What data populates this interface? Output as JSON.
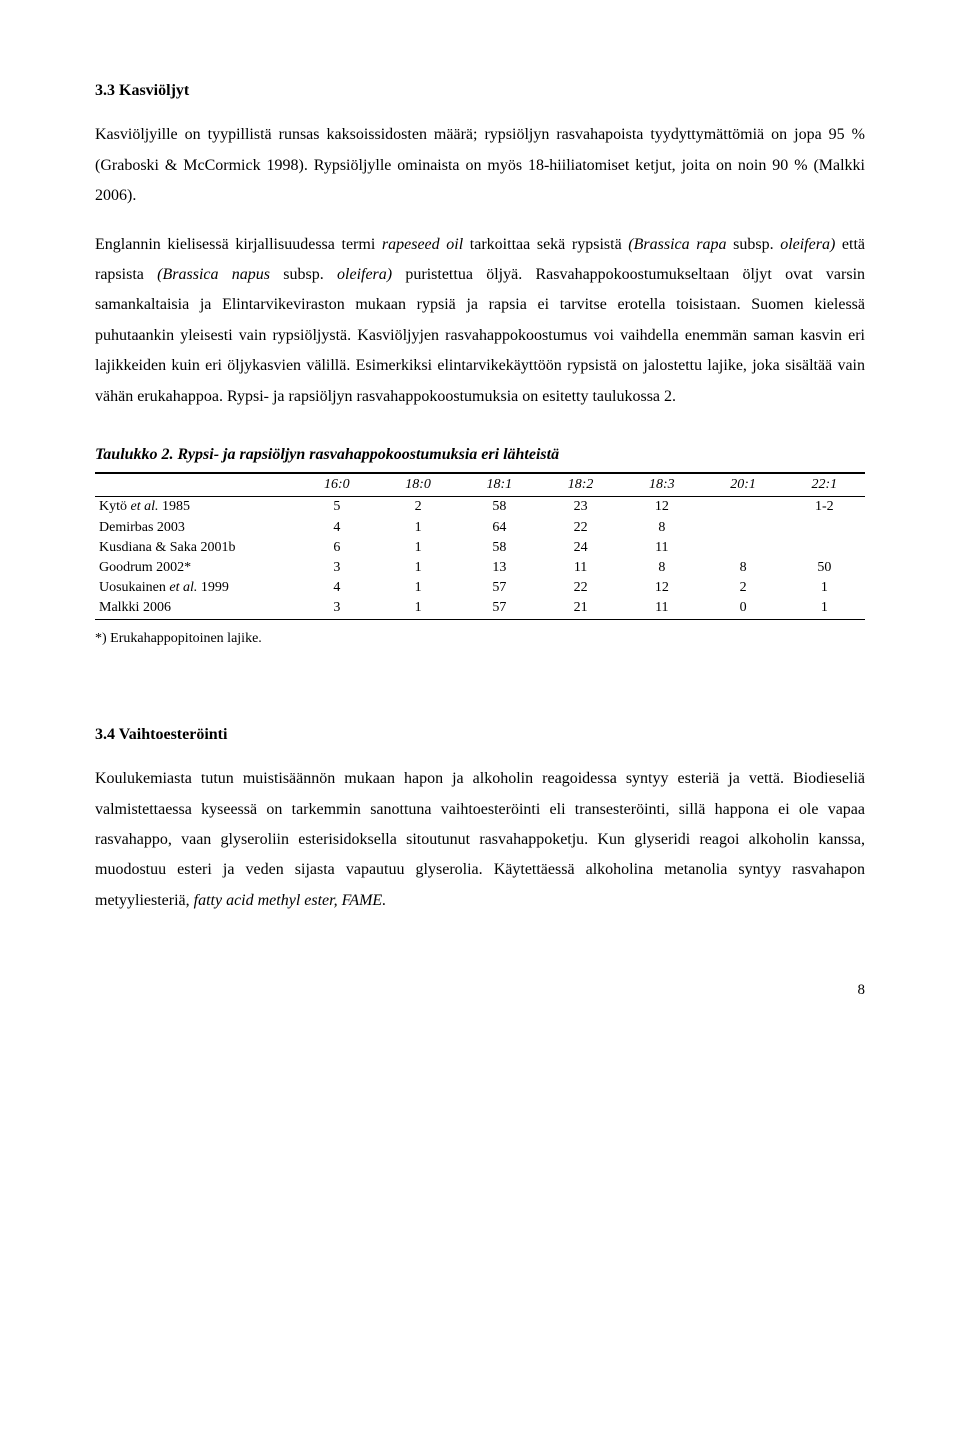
{
  "section1": {
    "heading": "3.3 Kasviöljyt",
    "para1_pre": "Kasviöljyille on tyypillistä runsas kaksoissidosten määrä; rypsiöljyn rasvahapoista tyydyttymättömiä on jopa 95 % (Graboski & McCormick 1998). Rypsiöljylle ominaista on myös 18-hiiliatomiset ketjut, joita on noin 90 % (Malkki 2006).",
    "p2_a": "Englannin kielisessä kirjallisuudessa termi ",
    "p2_i1": "rapeseed oil",
    "p2_b": " tarkoittaa sekä rypsistä ",
    "p2_i2": "(Brassica rapa",
    "p2_c": " subsp. ",
    "p2_i3": "oleifera)",
    "p2_d": " että rapsista ",
    "p2_i4": "(Brassica napus",
    "p2_e": " subsp. ",
    "p2_i5": "oleifera)",
    "p2_f": " puristettua öljyä. Rasvahappokoostumukseltaan öljyt ovat varsin samankaltaisia ja Elintarvikeviraston mukaan rypsiä ja rapsia ei tarvitse erotella toisistaan. Suomen kielessä puhutaankin yleisesti vain rypsiöljystä. Kasviöljyjen rasvahappokoostumus voi vaihdella enemmän saman kasvin eri lajikkeiden kuin eri öljykasvien välillä. Esimerkiksi elintarvikekäyttöön rypsistä on jalostettu lajike, joka sisältää vain vähän erukahappoa. Rypsi- ja rapsiöljyn rasvahappokoostumuksia on esitetty taulukossa 2."
  },
  "table": {
    "caption": "Taulukko 2. Rypsi- ja rapsiöljyn rasvahappokoostumuksia eri lähteistä",
    "columns": [
      "",
      "16:0",
      "18:0",
      "18:1",
      "18:2",
      "18:3",
      "20:1",
      "22:1"
    ],
    "rows": [
      {
        "label_pre": "Kytö ",
        "label_it": "et al.",
        "label_post": " 1985",
        "cells": [
          "5",
          "2",
          "58",
          "23",
          "12",
          "",
          "1-2"
        ]
      },
      {
        "label_pre": "Demirbas 2003",
        "label_it": "",
        "label_post": "",
        "cells": [
          "4",
          "1",
          "64",
          "22",
          "8",
          "",
          ""
        ]
      },
      {
        "label_pre": "Kusdiana & Saka 2001b",
        "label_it": "",
        "label_post": "",
        "cells": [
          "6",
          "1",
          "58",
          "24",
          "11",
          "",
          ""
        ]
      },
      {
        "label_pre": "Goodrum 2002*",
        "label_it": "",
        "label_post": "",
        "cells": [
          "3",
          "1",
          "13",
          "11",
          "8",
          "8",
          "50"
        ]
      },
      {
        "label_pre": "Uosukainen ",
        "label_it": "et al.",
        "label_post": " 1999",
        "cells": [
          "4",
          "1",
          "57",
          "22",
          "12",
          "2",
          "1"
        ]
      },
      {
        "label_pre": "Malkki 2006",
        "label_it": "",
        "label_post": "",
        "cells": [
          "3",
          "1",
          "57",
          "21",
          "11",
          "0",
          "1"
        ]
      }
    ],
    "footnote": "*) Erukahappopitoinen lajike."
  },
  "section2": {
    "heading": "3.4 Vaihtoesteröinti",
    "p_a": "Koulukemiasta tutun muistisäännön mukaan hapon ja alkoholin reagoidessa syntyy esteriä ja vettä. Biodieseliä valmistettaessa kyseessä on tarkemmin sanottuna vaihtoesteröinti eli transesteröinti, sillä happona ei ole vapaa rasvahappo, vaan glyseroliin esterisidoksella sitoutunut rasvahappoketju. Kun glyseridi reagoi alkoholin kanssa, muodostuu esteri ja veden sijasta vapautuu glyserolia. Käytettäessä alkoholina metanolia syntyy rasvahapon metyyliesteriä, ",
    "p_i": "fatty acid methyl ester, FAME.",
    "p_b": ""
  },
  "page_number": "8"
}
